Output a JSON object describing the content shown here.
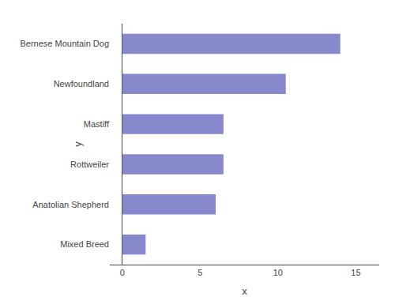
{
  "chart_data": {
    "type": "bar",
    "orientation": "horizontal",
    "categories": [
      "Bernese Mountain Dog",
      "Newfoundland",
      "Mastiff",
      "Rottweiler",
      "Anatolian Shepherd",
      "Mixed Breed"
    ],
    "values": [
      14,
      10.5,
      6.5,
      6.5,
      6.0,
      1.5
    ],
    "color": "#8888CC",
    "xlim": [
      -0.8,
      16.5
    ],
    "xticks": [
      0,
      5,
      10,
      15
    ],
    "xlabel": "x",
    "ylabel": "y",
    "grid": false
  }
}
